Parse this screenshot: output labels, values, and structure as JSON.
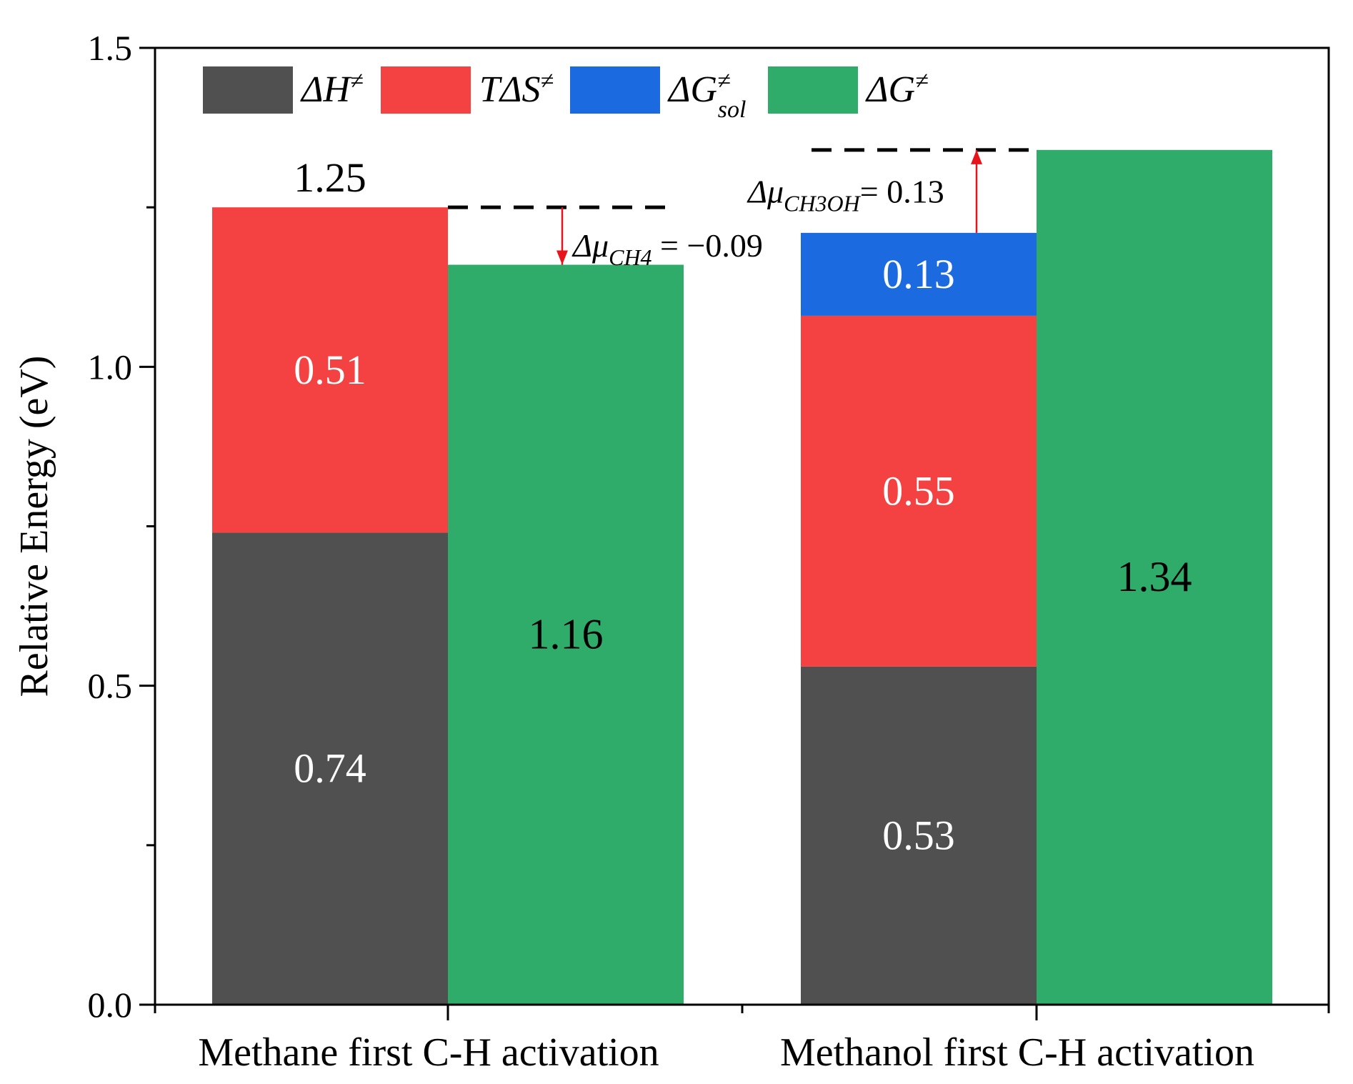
{
  "chart_data": {
    "type": "stacked-bar",
    "ylabel": "Relative Energy (eV)",
    "ylim": [
      0,
      1.5
    ],
    "yticks": [
      "0.0",
      "0.5",
      "1.0",
      "1.5"
    ],
    "categories": [
      "Methane first C-H activation",
      "Methanol first C-H activation"
    ],
    "legend": [
      {
        "key": "dH",
        "base": "ΔH",
        "sup": "≠",
        "sub": "",
        "color": "#505050"
      },
      {
        "key": "TdS",
        "base": "TΔS",
        "sup": "≠",
        "sub": "",
        "color": "#f44141"
      },
      {
        "key": "dGsol",
        "base": "ΔG",
        "sup": "≠",
        "sub": "sol",
        "color": "#1b6ae0"
      },
      {
        "key": "dG",
        "base": "ΔG",
        "sup": "≠",
        "sub": "",
        "color": "#2fac69"
      }
    ],
    "groups": [
      {
        "category": "Methane first C-H activation",
        "stack": [
          {
            "series": "dH",
            "value": 0.74,
            "label": "0.74"
          },
          {
            "series": "TdS",
            "value": 0.51,
            "label": "0.51"
          }
        ],
        "stack_total_label": "1.25",
        "stack_total": 1.25,
        "dG": {
          "value": 1.16,
          "label": "1.16"
        },
        "mu": {
          "prefix": "Δμ",
          "sub": "CH4",
          "text": " = −0.09",
          "from": 1.25,
          "to": 1.16
        }
      },
      {
        "category": "Methanol first C-H activation",
        "stack": [
          {
            "series": "dH",
            "value": 0.53,
            "label": "0.53"
          },
          {
            "series": "TdS",
            "value": 0.55,
            "label": "0.55"
          },
          {
            "series": "dGsol",
            "value": 0.13,
            "label": "0.13"
          }
        ],
        "stack_total_label": "",
        "stack_total": 1.21,
        "dG": {
          "value": 1.34,
          "label": "1.34"
        },
        "mu": {
          "prefix": "Δμ",
          "sub": "CH3OH",
          "text": "= 0.13",
          "from": 1.21,
          "to": 1.34
        }
      }
    ]
  }
}
